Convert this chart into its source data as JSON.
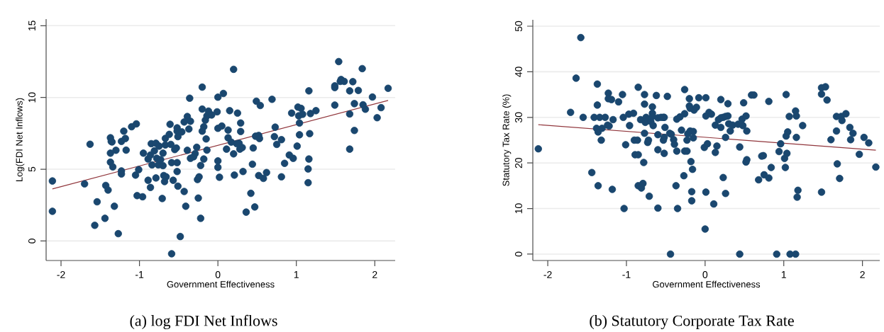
{
  "chart_data": [
    {
      "type": "scatter",
      "xlabel": "Government Effectiveness",
      "ylabel": "Log(FDI Net Inflows)",
      "annotations": [
        "(a) log FDI Net Inflows"
      ],
      "xlim": [
        -2.19,
        2.26
      ],
      "ylim": [
        -1.36,
        15.46
      ],
      "xticks": [
        -2,
        -1,
        0,
        1,
        2
      ],
      "yticks": [
        0,
        5,
        10,
        15
      ],
      "grid": "y",
      "series": [
        {
          "type": "scatter",
          "marker": "circle",
          "color": "#1a476f",
          "x": [
            -2.11,
            -2.11,
            -1.7,
            -1.63,
            -1.54,
            -1.57,
            -1.44,
            -1.43,
            -1.4,
            -1.37,
            -1.36,
            -1.35,
            -1.37,
            -1.37,
            -1.34,
            -1.32,
            -1.3,
            -1.27,
            -1.23,
            -1.2,
            -1.18,
            -1.17,
            -1.23,
            -1.23,
            -1.1,
            -1.04,
            -1.05,
            -1.01,
            -1.03,
            -0.96,
            -0.95,
            -0.89,
            -0.89,
            -0.86,
            -0.85,
            -0.84,
            -0.86,
            -0.79,
            -0.79,
            -0.81,
            -0.78,
            -0.76,
            -0.75,
            -0.73,
            -0.71,
            -0.7,
            -0.7,
            -0.67,
            -0.67,
            -0.69,
            -0.66,
            -0.68,
            -0.62,
            -0.61,
            -0.6,
            -0.59,
            -0.59,
            -0.57,
            -0.55,
            -0.53,
            -0.52,
            -0.52,
            -0.51,
            -0.52,
            -0.52,
            -0.51,
            -0.48,
            -0.46,
            -0.43,
            -0.43,
            -0.41,
            -0.39,
            -0.39,
            -0.37,
            -0.36,
            -0.35,
            -0.35,
            -0.31,
            -0.29,
            -0.27,
            -0.26,
            -0.24,
            -0.25,
            -0.22,
            -0.22,
            -0.2,
            -0.2,
            -0.2,
            -0.18,
            -0.18,
            -0.15,
            -0.16,
            -0.14,
            -0.14,
            -0.12,
            -0.08,
            -0.01,
            0.0,
            0.0,
            0.0,
            0.0,
            0.02,
            0.07,
            0.05,
            0.2,
            0.15,
            0.13,
            0.13,
            0.17,
            0.11,
            0.2,
            0.21,
            0.25,
            0.29,
            0.29,
            0.24,
            0.28,
            0.31,
            0.27,
            0.32,
            0.36,
            0.42,
            0.44,
            0.45,
            0.47,
            0.49,
            0.54,
            0.48,
            0.52,
            0.53,
            0.52,
            0.58,
            0.62,
            0.69,
            0.73,
            0.72,
            0.75,
            0.81,
            0.81,
            0.85,
            0.91,
            0.96,
            0.94,
            1.01,
            1.02,
            1.06,
            1.03,
            1.04,
            1.04,
            1.08,
            1.16,
            1.18,
            1.25,
            1.17,
            1.16,
            1.15,
            1.15,
            1.49,
            1.49,
            1.54,
            1.56,
            1.57,
            1.61,
            1.49,
            1.72,
            1.68,
            1.79,
            1.74,
            1.68,
            1.74,
            1.68,
            1.84,
            1.85,
            1.88,
            1.97,
            2.03,
            2.08,
            2.17
          ],
          "values": [
            4.18,
            2.07,
            3.98,
            6.74,
            2.73,
            1.09,
            1.58,
            3.87,
            3.55,
            7.19,
            6.94,
            6.9,
            6.12,
            5.49,
            5.16,
            2.42,
            6.32,
            0.51,
            6.94,
            7.65,
            7.14,
            6.33,
            4.88,
            4.67,
            7.96,
            8.16,
            4.59,
            4.97,
            3.16,
            3.08,
            6.12,
            4.23,
            5.71,
            5.99,
            6.78,
            5.3,
            3.73,
            6.81,
            4.39,
            6.28,
            5.76,
            5.3,
            6.61,
            5.67,
            2.96,
            5.25,
            6.12,
            7.15,
            6.69,
            4.56,
            4.47,
            4.14,
            7.43,
            8.13,
            6.73,
            5.46,
            -0.89,
            4.23,
            6.37,
            6.48,
            7.65,
            7.88,
            7.27,
            5.46,
            4.84,
            3.82,
            0.31,
            7.6,
            8.29,
            3.45,
            2.42,
            6.32,
            8.67,
            7.8,
            9.95,
            8.34,
            5.76,
            5.87,
            6.09,
            6.53,
            4.28,
            4.47,
            2.99,
            1.58,
            5.26,
            10.72,
            9.19,
            7.65,
            7.96,
            5.71,
            7.11,
            8.42,
            8.72,
            6.33,
            9.05,
            8.78,
            9.0,
            10.02,
            7.85,
            5.58,
            5.13,
            4.44,
            10.28,
            8.01,
            11.96,
            9.08,
            7.73,
            7.19,
            6.89,
            6.4,
            6.07,
            4.59,
            8.91,
            8.22,
            7.63,
            6.78,
            6.4,
            6.51,
            6.81,
            4.84,
            2.01,
            3.32,
            5.35,
            6.48,
            2.37,
            9.74,
            9.44,
            7.3,
            7.35,
            7.14,
            4.56,
            4.36,
            4.77,
            9.87,
            7.93,
            7.27,
            6.73,
            7.06,
            4.47,
            5.41,
            5.99,
            5.76,
            8.91,
            6.61,
            9.33,
            9.24,
            8.72,
            8.22,
            7.4,
            8.83,
            10.46,
            8.88,
            9.08,
            7.48,
            5.71,
            5.02,
            4.06,
            10.69,
            10.81,
            12.5,
            11.12,
            11.25,
            11.12,
            9.47,
            11.1,
            10.46,
            10.49,
            9.57,
            8.85,
            7.7,
            6.4,
            12.01,
            9.49,
            9.18,
            10.03,
            8.59,
            9.29,
            10.64
          ]
        },
        {
          "type": "line",
          "marker": "none",
          "color": "#90353b",
          "x": [
            -2.11,
            2.17
          ],
          "values": [
            3.63,
            9.79
          ]
        }
      ]
    },
    {
      "type": "scatter",
      "xlabel": "Government Effectiveness",
      "ylabel": "Statutory Tax Rate (%)",
      "annotations": [
        "(b) Statutory Corporate Tax Rate"
      ],
      "xlim": [
        -2.19,
        2.22
      ],
      "ylim": [
        -1.4,
        51.4
      ],
      "xticks": [
        -2,
        -1,
        0,
        1,
        2
      ],
      "yticks": [
        0,
        10,
        20,
        30,
        40,
        50
      ],
      "grid": "y",
      "series": [
        {
          "type": "scatter",
          "marker": "circle",
          "color": "#1a476f",
          "x": [
            -2.12,
            -1.71,
            -1.64,
            -1.58,
            -1.55,
            -1.44,
            -1.41,
            -1.37,
            -1.37,
            -1.38,
            -1.36,
            -1.34,
            -1.36,
            -1.32,
            -1.31,
            -1.27,
            -1.24,
            -1.23,
            -1.23,
            -1.22,
            -1.19,
            -1.18,
            -1.17,
            -1.1,
            -1.05,
            -1.04,
            -1.01,
            -1.03,
            -0.97,
            -0.96,
            -0.91,
            -0.9,
            -0.89,
            -0.85,
            -0.86,
            -0.85,
            -0.85,
            -0.81,
            -0.82,
            -0.78,
            -0.79,
            -0.77,
            -0.77,
            -0.77,
            -0.76,
            -0.75,
            -0.73,
            -0.72,
            -0.71,
            -0.69,
            -0.67,
            -0.67,
            -0.67,
            -0.66,
            -0.62,
            -0.6,
            -0.6,
            -0.6,
            -0.6,
            -0.56,
            -0.53,
            -0.52,
            -0.51,
            -0.53,
            -0.52,
            -0.52,
            -0.48,
            -0.45,
            -0.43,
            -0.44,
            -0.4,
            -0.39,
            -0.36,
            -0.37,
            -0.35,
            -0.36,
            -0.32,
            -0.3,
            -0.26,
            -0.26,
            -0.26,
            -0.23,
            -0.27,
            -0.23,
            -0.22,
            -0.2,
            -0.2,
            -0.19,
            -0.19,
            -0.18,
            -0.17,
            -0.17,
            -0.16,
            -0.15,
            -0.15,
            -0.14,
            -0.11,
            -0.08,
            -0.01,
            0.01,
            0.01,
            0.0,
            0.01,
            0.03,
            0.05,
            0.08,
            0.11,
            0.13,
            0.13,
            0.15,
            0.2,
            0.17,
            0.2,
            0.2,
            0.23,
            0.26,
            0.29,
            0.29,
            0.26,
            0.23,
            0.26,
            0.3,
            0.32,
            0.35,
            0.42,
            0.47,
            0.48,
            0.49,
            0.52,
            0.53,
            0.44,
            0.52,
            0.53,
            0.44,
            0.59,
            0.62,
            0.68,
            0.72,
            0.74,
            0.75,
            0.81,
            0.81,
            0.84,
            0.91,
            0.94,
            0.96,
            1.03,
            1.01,
            1.02,
            1.03,
            1.05,
            1.04,
            1.07,
            1.08,
            1.15,
            1.15,
            1.16,
            1.16,
            1.18,
            1.17,
            1.24,
            1.48,
            1.53,
            1.48,
            1.55,
            1.48,
            1.6,
            1.67,
            1.73,
            1.74,
            1.79,
            1.67,
            1.68,
            1.71,
            1.84,
            1.88,
            1.85,
            1.96,
            2.02,
            2.08,
            2.17
          ],
          "values": [
            23.1,
            31.1,
            38.6,
            47.5,
            30.0,
            17.9,
            30.0,
            37.3,
            32.7,
            27.6,
            26.8,
            30.0,
            15.0,
            25.0,
            27.6,
            30.0,
            28.3,
            35.3,
            34.1,
            28.1,
            33.9,
            14.2,
            29.5,
            33.4,
            35.0,
            30.0,
            24.0,
            10.0,
            30.7,
            28.2,
            30.9,
            25.0,
            21.8,
            36.6,
            25.0,
            21.8,
            15.0,
            14.5,
            29.5,
            20.1,
            15.5,
            35.0,
            32.9,
            26.5,
            28.9,
            30.0,
            24.5,
            25.0,
            12.7,
            29.1,
            32.3,
            30.9,
            30.2,
            28.2,
            34.8,
            29.9,
            26.2,
            22.9,
            10.1,
            30.0,
            30.0,
            30.0,
            27.8,
            25.0,
            25.6,
            22.1,
            34.6,
            26.5,
            26.3,
            0.0,
            25.1,
            24.1,
            22.6,
            15.0,
            10.0,
            29.6,
            30.1,
            27.2,
            36.1,
            30.8,
            22.6,
            22.6,
            17.2,
            25.0,
            26.4,
            34.1,
            32.5,
            32.0,
            27.0,
            20.3,
            13.7,
            11.7,
            18.6,
            25.5,
            26.9,
            31.6,
            32.2,
            34.3,
            23.4,
            34.3,
            30.3,
            5.5,
            13.6,
            24.2,
            31.1,
            30.7,
            11.0,
            28.3,
            22.3,
            23.7,
            33.9,
            29.5,
            29.9,
            27.8,
            30.0,
            30.2,
            30.3,
            33.0,
            25.6,
            16.8,
            13.3,
            28.6,
            27.0,
            28.3,
            28.5,
            29.6,
            28.2,
            33.2,
            30.3,
            27.0,
            23.5,
            20.2,
            20.7,
            0.0,
            34.9,
            34.9,
            16.3,
            21.5,
            21.6,
            17.4,
            33.5,
            16.7,
            19.0,
            0.0,
            22.5,
            24.2,
            35.0,
            21.0,
            19.0,
            25.9,
            26.8,
            22.1,
            30.2,
            0.0,
            0.0,
            31.4,
            30.3,
            25.6,
            14.0,
            12.5,
            28.2,
            36.5,
            36.7,
            35.1,
            33.8,
            13.6,
            25.1,
            30.2,
            30.2,
            29.3,
            30.8,
            27.0,
            19.8,
            16.6,
            27.8,
            26.5,
            25.1,
            21.9,
            25.6,
            24.4,
            19.1
          ]
        },
        {
          "type": "line",
          "marker": "none",
          "color": "#90353b",
          "x": [
            -2.12,
            2.17
          ],
          "values": [
            28.4,
            22.8
          ]
        }
      ]
    }
  ]
}
